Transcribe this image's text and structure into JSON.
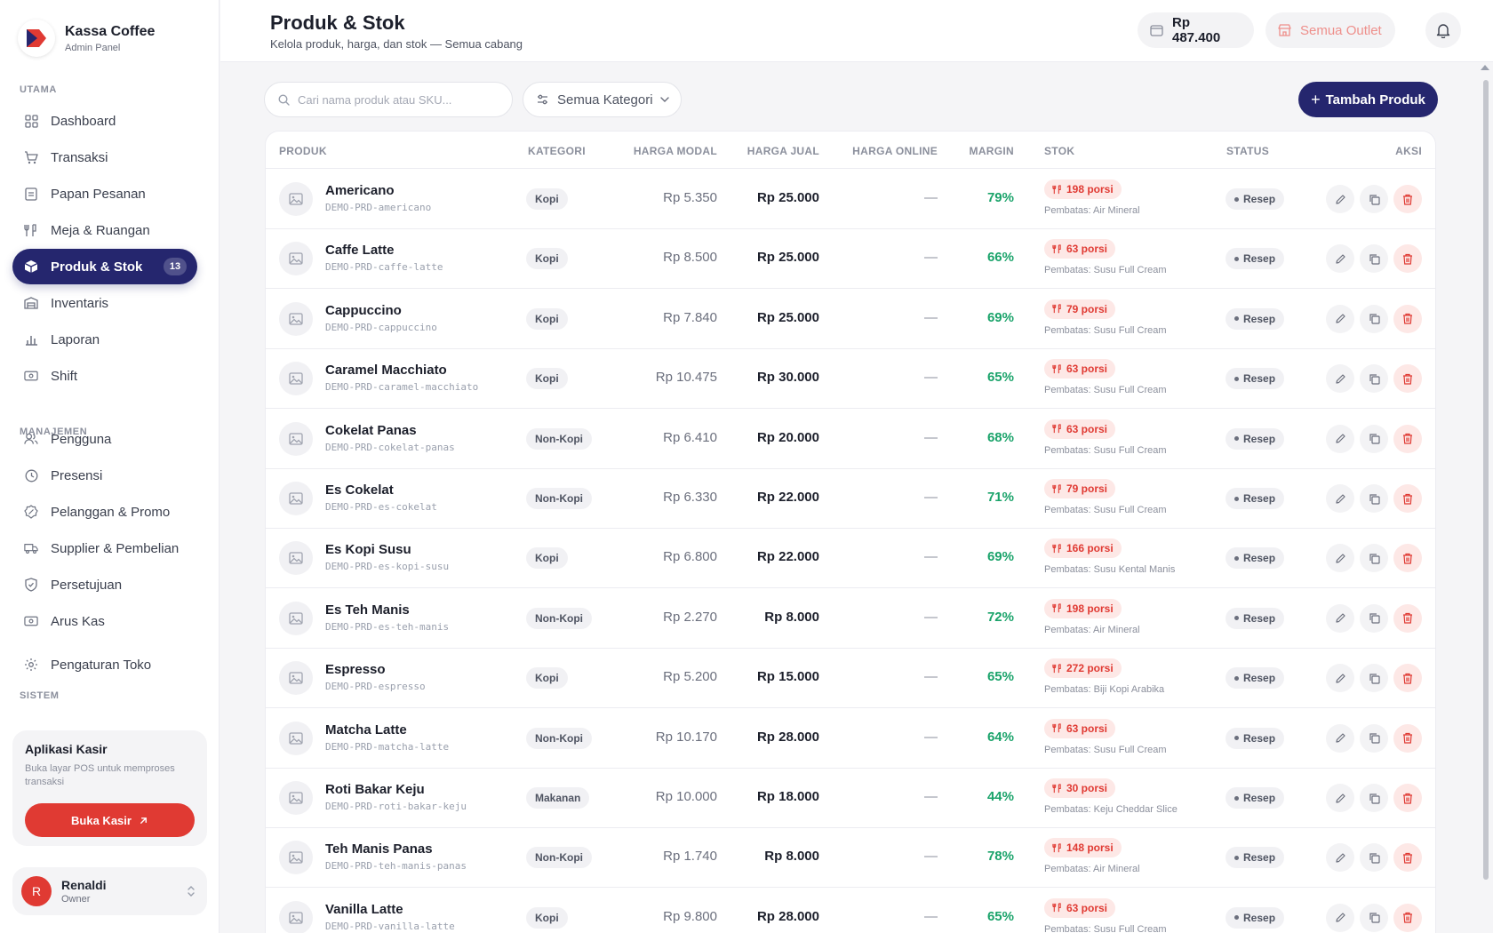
{
  "brand": {
    "name": "Kassa Coffee",
    "subtitle": "Admin Panel"
  },
  "sidebar": {
    "sections": {
      "utama": "UTAMA",
      "manajemen": "MANAJEMEN",
      "sistem": "SISTEM"
    },
    "items": [
      {
        "label": "Dashboard",
        "icon": "grid-icon"
      },
      {
        "label": "Transaksi",
        "icon": "cart-icon"
      },
      {
        "label": "Papan Pesanan",
        "icon": "clipboard-icon"
      },
      {
        "label": "Meja & Ruangan",
        "icon": "utensils-icon"
      },
      {
        "label": "Produk & Stok",
        "icon": "box-icon",
        "badge": "13",
        "active": true
      },
      {
        "label": "Inventaris",
        "icon": "warehouse-icon"
      },
      {
        "label": "Laporan",
        "icon": "bar-chart-icon"
      },
      {
        "label": "Shift",
        "icon": "cash-icon"
      },
      {
        "label": "Pengguna",
        "icon": "users-icon"
      },
      {
        "label": "Presensi",
        "icon": "clock-icon"
      },
      {
        "label": "Pelanggan & Promo",
        "icon": "badge-percent-icon"
      },
      {
        "label": "Supplier & Pembelian",
        "icon": "truck-icon"
      },
      {
        "label": "Persetujuan",
        "icon": "shield-check-icon"
      },
      {
        "label": "Arus Kas",
        "icon": "banknote-icon"
      },
      {
        "label": "Pengaturan Toko",
        "icon": "gear-icon"
      }
    ],
    "cashier": {
      "title": "Aplikasi Kasir",
      "description": "Buka layar POS untuk memproses transaksi",
      "button": "Buka Kasir"
    },
    "user": {
      "initial": "R",
      "name": "Renaldi",
      "role": "Owner"
    }
  },
  "header": {
    "title": "Produk & Stok",
    "subtitle": "Kelola produk, harga, dan stok — Semua cabang",
    "balance": "Rp 487.400",
    "outlet": "Semua Outlet"
  },
  "toolbar": {
    "search_placeholder": "Cari nama produk atau SKU...",
    "category_filter": "Semua Kategori",
    "add_button": "Tambah Produk"
  },
  "table": {
    "columns": [
      "PRODUK",
      "KATEGORI",
      "HARGA MODAL",
      "HARGA JUAL",
      "HARGA ONLINE",
      "MARGIN",
      "STOK",
      "STATUS",
      "AKSI"
    ],
    "rows": [
      {
        "name": "Americano",
        "sku": "DEMO-PRD-americano",
        "category": "Kopi",
        "cost": "Rp 5.350",
        "price": "Rp 25.000",
        "online": "—",
        "margin": "79%",
        "stock": "198 porsi",
        "limit": "Pembatas: Air Mineral",
        "status": "Resep"
      },
      {
        "name": "Caffe Latte",
        "sku": "DEMO-PRD-caffe-latte",
        "category": "Kopi",
        "cost": "Rp 8.500",
        "price": "Rp 25.000",
        "online": "—",
        "margin": "66%",
        "stock": "63 porsi",
        "limit": "Pembatas: Susu Full Cream",
        "status": "Resep"
      },
      {
        "name": "Cappuccino",
        "sku": "DEMO-PRD-cappuccino",
        "category": "Kopi",
        "cost": "Rp 7.840",
        "price": "Rp 25.000",
        "online": "—",
        "margin": "69%",
        "stock": "79 porsi",
        "limit": "Pembatas: Susu Full Cream",
        "status": "Resep"
      },
      {
        "name": "Caramel Macchiato",
        "sku": "DEMO-PRD-caramel-macchiato",
        "category": "Kopi",
        "cost": "Rp 10.475",
        "price": "Rp 30.000",
        "online": "—",
        "margin": "65%",
        "stock": "63 porsi",
        "limit": "Pembatas: Susu Full Cream",
        "status": "Resep"
      },
      {
        "name": "Cokelat Panas",
        "sku": "DEMO-PRD-cokelat-panas",
        "category": "Non-Kopi",
        "cost": "Rp 6.410",
        "price": "Rp 20.000",
        "online": "—",
        "margin": "68%",
        "stock": "63 porsi",
        "limit": "Pembatas: Susu Full Cream",
        "status": "Resep"
      },
      {
        "name": "Es Cokelat",
        "sku": "DEMO-PRD-es-cokelat",
        "category": "Non-Kopi",
        "cost": "Rp 6.330",
        "price": "Rp 22.000",
        "online": "—",
        "margin": "71%",
        "stock": "79 porsi",
        "limit": "Pembatas: Susu Full Cream",
        "status": "Resep"
      },
      {
        "name": "Es Kopi Susu",
        "sku": "DEMO-PRD-es-kopi-susu",
        "category": "Kopi",
        "cost": "Rp 6.800",
        "price": "Rp 22.000",
        "online": "—",
        "margin": "69%",
        "stock": "166 porsi",
        "limit": "Pembatas: Susu Kental Manis",
        "status": "Resep"
      },
      {
        "name": "Es Teh Manis",
        "sku": "DEMO-PRD-es-teh-manis",
        "category": "Non-Kopi",
        "cost": "Rp 2.270",
        "price": "Rp 8.000",
        "online": "—",
        "margin": "72%",
        "stock": "198 porsi",
        "limit": "Pembatas: Air Mineral",
        "status": "Resep"
      },
      {
        "name": "Espresso",
        "sku": "DEMO-PRD-espresso",
        "category": "Kopi",
        "cost": "Rp 5.200",
        "price": "Rp 15.000",
        "online": "—",
        "margin": "65%",
        "stock": "272 porsi",
        "limit": "Pembatas: Biji Kopi Arabika",
        "status": "Resep"
      },
      {
        "name": "Matcha Latte",
        "sku": "DEMO-PRD-matcha-latte",
        "category": "Non-Kopi",
        "cost": "Rp 10.170",
        "price": "Rp 28.000",
        "online": "—",
        "margin": "64%",
        "stock": "63 porsi",
        "limit": "Pembatas: Susu Full Cream",
        "status": "Resep"
      },
      {
        "name": "Roti Bakar Keju",
        "sku": "DEMO-PRD-roti-bakar-keju",
        "category": "Makanan",
        "cost": "Rp 10.000",
        "price": "Rp 18.000",
        "online": "—",
        "margin": "44%",
        "stock": "30 porsi",
        "limit": "Pembatas: Keju Cheddar Slice",
        "status": "Resep"
      },
      {
        "name": "Teh Manis Panas",
        "sku": "DEMO-PRD-teh-manis-panas",
        "category": "Non-Kopi",
        "cost": "Rp 1.740",
        "price": "Rp 8.000",
        "online": "—",
        "margin": "78%",
        "stock": "148 porsi",
        "limit": "Pembatas: Air Mineral",
        "status": "Resep"
      },
      {
        "name": "Vanilla Latte",
        "sku": "DEMO-PRD-vanilla-latte",
        "category": "Kopi",
        "cost": "Rp 9.800",
        "price": "Rp 28.000",
        "online": "—",
        "margin": "65%",
        "stock": "63 porsi",
        "limit": "Pembatas: Susu Full Cream",
        "status": "Resep"
      }
    ]
  },
  "colors": {
    "primary": "#25266e",
    "danger": "#e03a33",
    "success": "#1aa36a"
  }
}
